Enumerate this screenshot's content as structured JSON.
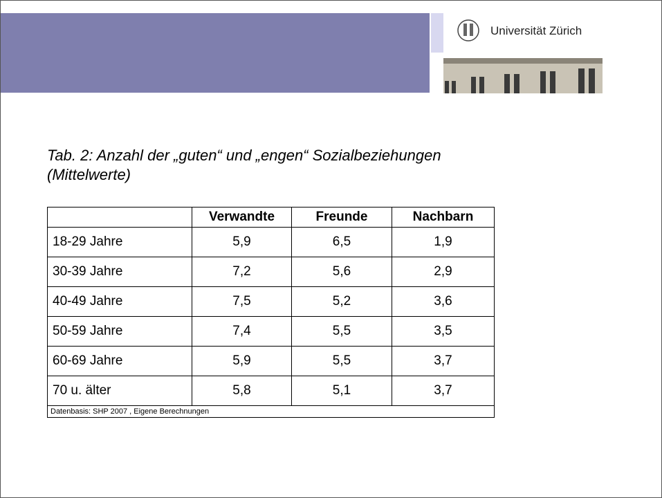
{
  "header": {
    "logo_text": "Universität Zürich"
  },
  "title": [
    "Tab. 2:  Anzahl der „guten“ und „engen“ Sozialbeziehungen",
    "(Mittelwerte)"
  ],
  "table": {
    "columns": [
      "Verwandte",
      "Freunde",
      "Nachbarn"
    ],
    "rows": [
      [
        "18-29 Jahre",
        "5,9",
        "6,5",
        "1,9"
      ],
      [
        "30-39 Jahre",
        "7,2",
        "5,6",
        "2,9"
      ],
      [
        "40-49  Jahre",
        "7,5",
        "5,2",
        "3,6"
      ],
      [
        "50-59 Jahre",
        "7,4",
        "5,5",
        "3,5"
      ],
      [
        "60-69 Jahre",
        "5,9",
        "5,5",
        "3,7"
      ],
      [
        "70 u. älter",
        "5,8",
        "5,1",
        "3,7"
      ]
    ],
    "footnote": "Datenbasis:  SHP 2007 , Eigene Berechnungen"
  }
}
